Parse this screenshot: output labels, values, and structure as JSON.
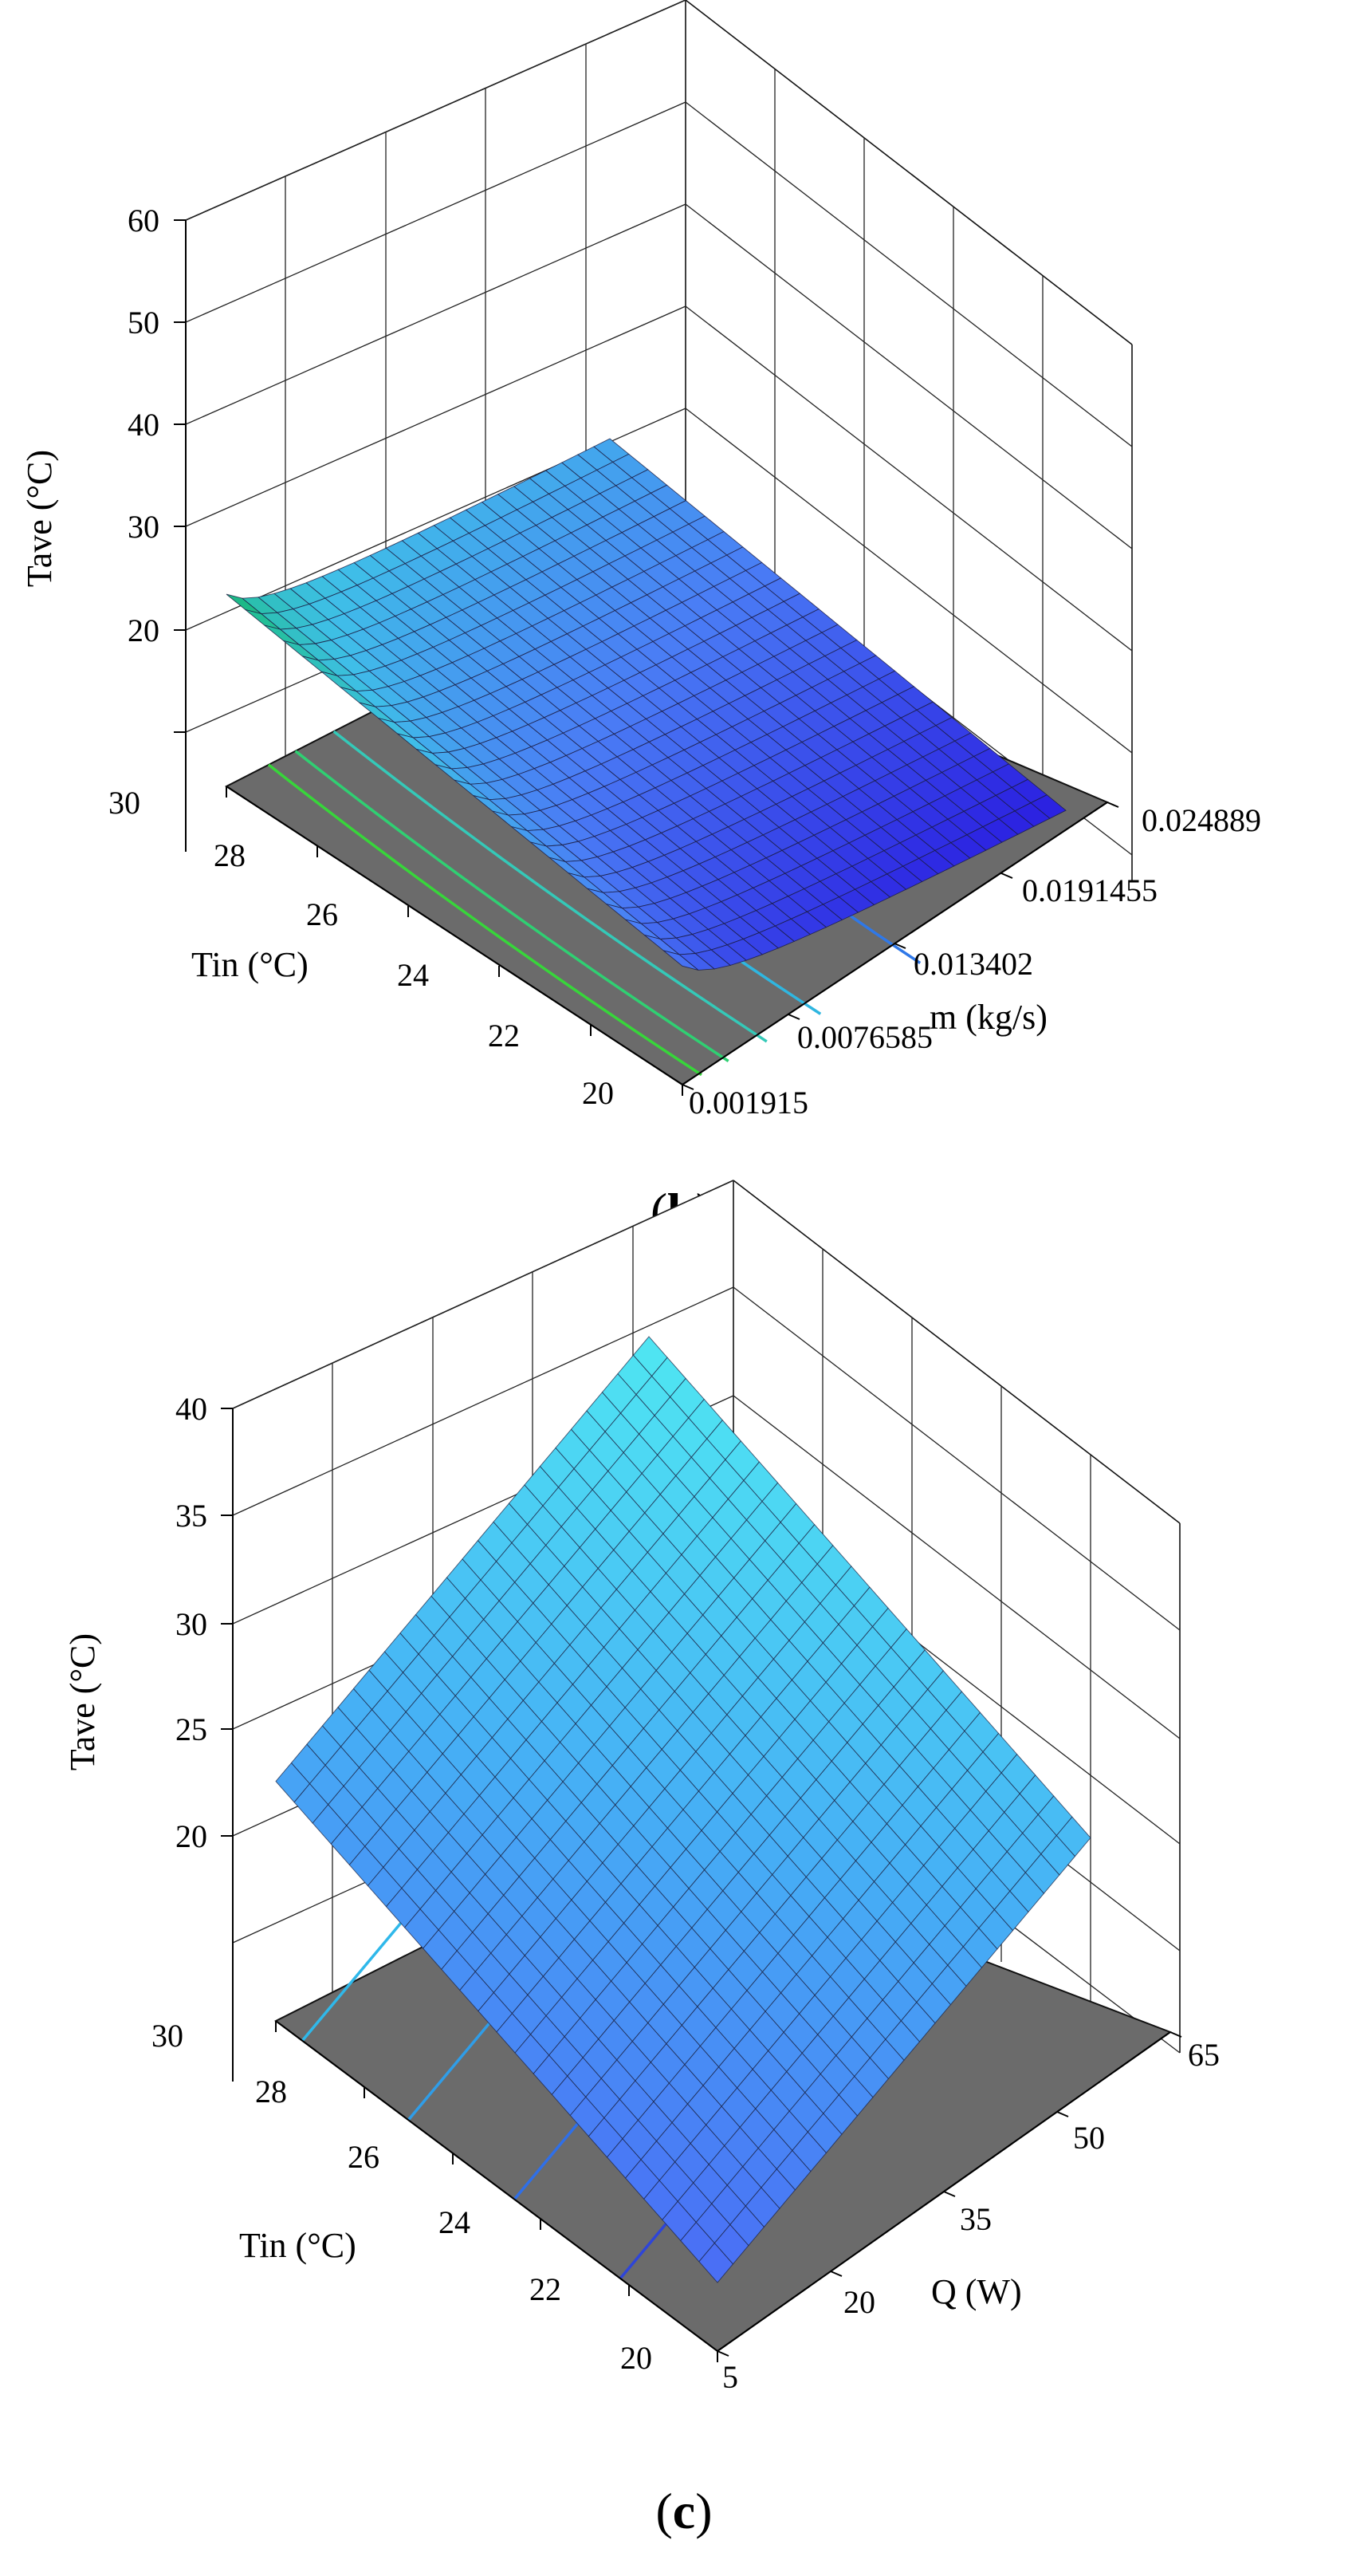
{
  "chart_data": [
    {
      "type": "surface3d",
      "panel": "(b)",
      "panel_letter": "b",
      "zlabel": "Tave (°C)",
      "ylabel": "Tin (°C)",
      "xlabel": "m (kg/s)",
      "z_ticks": [
        "20",
        "30",
        "40",
        "50",
        "60"
      ],
      "y_ticks": [
        "30",
        "28",
        "26",
        "24",
        "22",
        "20"
      ],
      "x_ticks": [
        "0.001915",
        "0.0076585",
        "0.013402",
        "0.0191455",
        "0.024889"
      ],
      "zlim": [
        10,
        60
      ],
      "x_range": [
        0.001915,
        0.024889
      ],
      "y_range": [
        20,
        30
      ],
      "surface_colors": [
        "#0a7a2a",
        "#1fbf8f",
        "#3fbfe8",
        "#4a7cf5",
        "#2a1ee0"
      ],
      "floor_color": "#6b6b6b",
      "contour_colors": [
        "#37d63a",
        "#2fd072",
        "#34c9b8",
        "#2fb6e0",
        "#2f78e8"
      ]
    },
    {
      "type": "surface3d",
      "panel": "(c)",
      "panel_letter": "c",
      "zlabel": "Tave (°C)",
      "ylabel": "Tin (°C)",
      "xlabel": "Q (W)",
      "z_ticks": [
        "20",
        "25",
        "30",
        "35",
        "40"
      ],
      "y_ticks": [
        "30",
        "28",
        "26",
        "24",
        "22",
        "20"
      ],
      "x_ticks": [
        "5",
        "20",
        "35",
        "50",
        "65"
      ],
      "zlim": [
        15,
        40
      ],
      "x_range": [
        5,
        65
      ],
      "y_range": [
        20,
        30
      ],
      "surface_colors": [
        "#4fe6f2",
        "#46b0f5",
        "#4a6cf5"
      ],
      "floor_color": "#6b6b6b",
      "contour_colors": [
        "#2fb8ea",
        "#2f9de8",
        "#2f6fe8",
        "#2e45d8"
      ]
    }
  ]
}
